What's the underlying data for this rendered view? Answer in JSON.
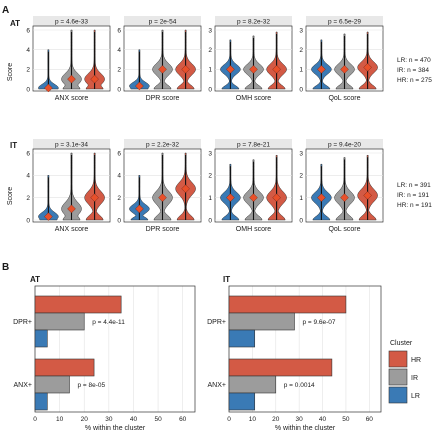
{
  "panel_labels": {
    "a": "A",
    "b": "B"
  },
  "row_labels": {
    "at": "AT",
    "it": "IT"
  },
  "score_axis_label": "Score",
  "colors": {
    "LR": "#3a7ab5",
    "IR": "#9c9c9c",
    "HR": "#d35a45",
    "mean": "#e8502a"
  },
  "legend": {
    "title": "Cluster",
    "items": [
      {
        "key": "HR",
        "label": "HR"
      },
      {
        "key": "IR",
        "label": "IR"
      },
      {
        "key": "LR",
        "label": "LR"
      }
    ]
  },
  "chart_data": [
    {
      "type": "violin",
      "row": "AT",
      "column_label": "ANX score",
      "p_value": "p = 4.6e-33",
      "ylim": [
        0,
        6
      ],
      "yticks": [
        0,
        2,
        4,
        6
      ],
      "groups": [
        {
          "name": "LR",
          "mean": 0.1,
          "min": 0,
          "max": 4
        },
        {
          "name": "IR",
          "mean": 1.0,
          "min": 0,
          "max": 6
        },
        {
          "name": "HR",
          "mean": 1.0,
          "min": 0,
          "max": 6
        }
      ]
    },
    {
      "type": "violin",
      "row": "AT",
      "column_label": "DPR score",
      "p_value": "p = 2e-54",
      "ylim": [
        0,
        6
      ],
      "yticks": [
        0,
        2,
        4,
        6
      ],
      "groups": [
        {
          "name": "LR",
          "mean": 0.3,
          "min": 0,
          "max": 4
        },
        {
          "name": "IR",
          "mean": 2.0,
          "min": 0,
          "max": 6
        },
        {
          "name": "HR",
          "mean": 2.0,
          "min": 0,
          "max": 6
        }
      ]
    },
    {
      "type": "violin",
      "row": "AT",
      "column_label": "OMH score",
      "p_value": "p = 8.2e-32",
      "ylim": [
        0,
        3
      ],
      "yticks": [
        0,
        1,
        2,
        3
      ],
      "groups": [
        {
          "name": "LR",
          "mean": 1.0,
          "min": 0,
          "max": 2.5
        },
        {
          "name": "IR",
          "mean": 1.0,
          "min": 0,
          "max": 2.7
        },
        {
          "name": "HR",
          "mean": 1.0,
          "min": 0,
          "max": 2.9
        }
      ]
    },
    {
      "type": "violin",
      "row": "AT",
      "column_label": "QoL score",
      "p_value": "p = 6.5e-29",
      "ylim": [
        0,
        3
      ],
      "yticks": [
        0,
        1,
        2,
        3
      ],
      "groups": [
        {
          "name": "LR",
          "mean": 1.0,
          "min": 0,
          "max": 2.5
        },
        {
          "name": "IR",
          "mean": 1.0,
          "min": 0,
          "max": 2.8
        },
        {
          "name": "HR",
          "mean": 1.1,
          "min": 0,
          "max": 2.9
        }
      ]
    },
    {
      "type": "violin",
      "row": "IT",
      "column_label": "ANX score",
      "p_value": "p = 3.1e-34",
      "ylim": [
        0,
        6
      ],
      "yticks": [
        0,
        2,
        4,
        6
      ],
      "groups": [
        {
          "name": "LR",
          "mean": 0.3,
          "min": 0,
          "max": 4
        },
        {
          "name": "IR",
          "mean": 1.0,
          "min": 0,
          "max": 6
        },
        {
          "name": "HR",
          "mean": 2.0,
          "min": 0,
          "max": 6
        }
      ]
    },
    {
      "type": "violin",
      "row": "IT",
      "column_label": "DPR score",
      "p_value": "p = 2.2e-32",
      "ylim": [
        0,
        6
      ],
      "yticks": [
        0,
        2,
        4,
        6
      ],
      "groups": [
        {
          "name": "LR",
          "mean": 1.0,
          "min": 0,
          "max": 4
        },
        {
          "name": "IR",
          "mean": 2.0,
          "min": 0,
          "max": 6
        },
        {
          "name": "HR",
          "mean": 2.8,
          "min": 0,
          "max": 6
        }
      ]
    },
    {
      "type": "violin",
      "row": "IT",
      "column_label": "OMH score",
      "p_value": "p = 7.8e-21",
      "ylim": [
        0,
        3
      ],
      "yticks": [
        0,
        1,
        2,
        3
      ],
      "groups": [
        {
          "name": "LR",
          "mean": 1.0,
          "min": 0,
          "max": 2.5
        },
        {
          "name": "IR",
          "mean": 1.0,
          "min": 0,
          "max": 2.7
        },
        {
          "name": "HR",
          "mean": 1.0,
          "min": 0,
          "max": 2.9
        }
      ]
    },
    {
      "type": "violin",
      "row": "IT",
      "column_label": "QoL score",
      "p_value": "p = 9.4e-20",
      "ylim": [
        0,
        3
      ],
      "yticks": [
        0,
        1,
        2,
        3
      ],
      "groups": [
        {
          "name": "LR",
          "mean": 1.0,
          "min": 0,
          "max": 2.5
        },
        {
          "name": "IR",
          "mean": 1.0,
          "min": 0,
          "max": 2.8
        },
        {
          "name": "HR",
          "mean": 1.1,
          "min": 0,
          "max": 2.9
        }
      ]
    },
    {
      "type": "bar",
      "orientation": "horizontal",
      "title": "AT",
      "xlabel": "% within the cluster",
      "xlim": [
        0,
        65
      ],
      "xticks": [
        0,
        10,
        20,
        30,
        40,
        50,
        60
      ],
      "categories": [
        "DPR+",
        "ANX+"
      ],
      "series": [
        {
          "name": "HR",
          "values": [
            35,
            24
          ]
        },
        {
          "name": "IR",
          "values": [
            20,
            14
          ]
        },
        {
          "name": "LR",
          "values": [
            5,
            5
          ]
        }
      ],
      "p_values": [
        "p = 4.4e-11",
        "p = 8e-05"
      ]
    },
    {
      "type": "bar",
      "orientation": "horizontal",
      "title": "IT",
      "xlabel": "% within the cluster",
      "xlim": [
        0,
        65
      ],
      "xticks": [
        0,
        10,
        20,
        30,
        40,
        50,
        60
      ],
      "categories": [
        "DPR+",
        "ANX+"
      ],
      "series": [
        {
          "name": "HR",
          "values": [
            50,
            44
          ]
        },
        {
          "name": "IR",
          "values": [
            28,
            20
          ]
        },
        {
          "name": "LR",
          "values": [
            11,
            11
          ]
        }
      ],
      "p_values": [
        "p = 9.6e-07",
        "p = 0.0014"
      ]
    }
  ],
  "sample_sizes": {
    "AT": [
      "LR: n = 470",
      "IR: n = 384",
      "HR: n = 275"
    ],
    "IT": [
      "LR: n = 391",
      "IR: n = 191",
      "HR: n = 191"
    ]
  }
}
